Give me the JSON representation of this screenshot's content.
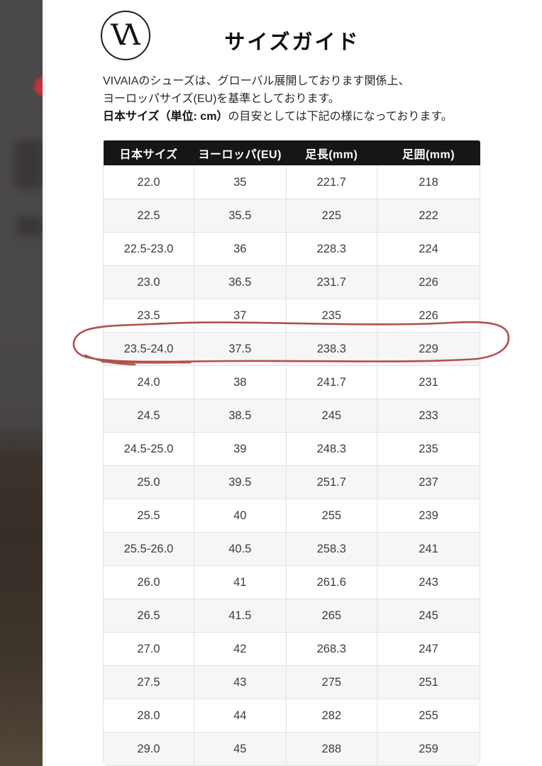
{
  "modal": {
    "title": "サイズガイド"
  },
  "brand": {
    "logo_letter_v": "V",
    "logo_letter_a": "Λ"
  },
  "intro": {
    "line1": "VIVAIAのシューズは、グローバル展開しております関係上、",
    "line2": "ヨーロッパサイズ(EU)を基準としております。",
    "line3_bold": "日本サイズ（単位: cm）",
    "line3_rest": "の目安としては下記の様になっております。"
  },
  "table": {
    "columns": [
      "日本サイズ",
      "ヨーロッパ(EU)",
      "足長(mm)",
      "足囲(mm)"
    ],
    "rows": [
      [
        "22.0",
        "35",
        "221.7",
        "218"
      ],
      [
        "22.5",
        "35.5",
        "225",
        "222"
      ],
      [
        "22.5-23.0",
        "36",
        "228.3",
        "224"
      ],
      [
        "23.0",
        "36.5",
        "231.7",
        "226"
      ],
      [
        "23.5",
        "37",
        "235",
        "226"
      ],
      [
        "23.5-24.0",
        "37.5",
        "238.3",
        "229"
      ],
      [
        "24.0",
        "38",
        "241.7",
        "231"
      ],
      [
        "24.5",
        "38.5",
        "245",
        "233"
      ],
      [
        "24.5-25.0",
        "39",
        "248.3",
        "235"
      ],
      [
        "25.0",
        "39.5",
        "251.7",
        "237"
      ],
      [
        "25.5",
        "40",
        "255",
        "239"
      ],
      [
        "25.5-26.0",
        "40.5",
        "258.3",
        "241"
      ],
      [
        "26.0",
        "41",
        "261.6",
        "243"
      ],
      [
        "26.5",
        "41.5",
        "265",
        "245"
      ],
      [
        "27.0",
        "42",
        "268.3",
        "247"
      ],
      [
        "27.5",
        "43",
        "275",
        "251"
      ],
      [
        "28.0",
        "44",
        "282",
        "255"
      ],
      [
        "29.0",
        "45",
        "288",
        "259"
      ]
    ],
    "highlighted_row_index": 5,
    "highlighted_row_values": [
      "23.5-24.0",
      "37.5",
      "238.3",
      "229"
    ]
  },
  "annotation": {
    "type": "hand-drawn-circle",
    "color": "#b2504a",
    "target_row": "23.5-24.0"
  },
  "colors": {
    "header_bg": "#161616",
    "header_text": "#ffffff",
    "row_alt_bg": "#f6f6f7",
    "table_border": "#e2e2e3",
    "cell_text": "#3c3c3c",
    "backdrop_top": "#4b484b",
    "backdrop_bottom": "#55483a"
  }
}
